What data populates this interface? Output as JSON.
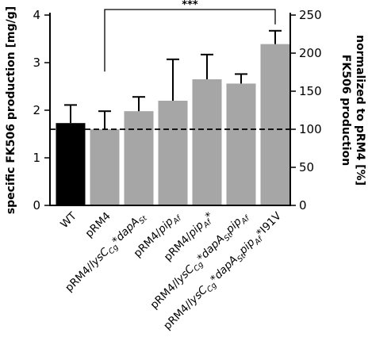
{
  "chart_data": {
    "type": "bar",
    "title": "",
    "categories": [
      "WT",
      "pRM4",
      "pRM4/lysC_Cg*dapA_St",
      "pRM4/pip_Af",
      "pRM4/pip_Af*",
      "pRM4/lysC_Cg*dapA_St pip_Af",
      "pRM4/lysC_Cg*dapA_St pip_Af*I91V"
    ],
    "category_labels": [
      [
        {
          "t": "WT",
          "s": ""
        }
      ],
      [
        {
          "t": "pRM4",
          "s": ""
        }
      ],
      [
        {
          "t": "pRM4/",
          "s": ""
        },
        {
          "t": "lysC",
          "s": "i"
        },
        {
          "t": "Cg",
          "s": "sub"
        },
        {
          "t": "*",
          "s": ""
        },
        {
          "t": "dapA",
          "s": "i"
        },
        {
          "t": "St",
          "s": "sub"
        }
      ],
      [
        {
          "t": "pRM4/",
          "s": ""
        },
        {
          "t": "pip",
          "s": "i"
        },
        {
          "t": "Af",
          "s": "sub"
        }
      ],
      [
        {
          "t": "pRM4/",
          "s": ""
        },
        {
          "t": "pip",
          "s": "i"
        },
        {
          "t": "Af",
          "s": "sub"
        },
        {
          "t": "*",
          "s": ""
        }
      ],
      [
        {
          "t": "pRM4/",
          "s": ""
        },
        {
          "t": "lysC",
          "s": "i"
        },
        {
          "t": "Cg",
          "s": "sub"
        },
        {
          "t": "*",
          "s": ""
        },
        {
          "t": "dapA",
          "s": "i"
        },
        {
          "t": "St",
          "s": "sub"
        },
        {
          "t": "pip",
          "s": "i"
        },
        {
          "t": "Af",
          "s": "sub"
        }
      ],
      [
        {
          "t": "pRM4/",
          "s": ""
        },
        {
          "t": "lysC",
          "s": "i"
        },
        {
          "t": "Cg",
          "s": "sub"
        },
        {
          "t": "*",
          "s": ""
        },
        {
          "t": "dapA",
          "s": "i"
        },
        {
          "t": "St",
          "s": "sub"
        },
        {
          "t": "pip",
          "s": "i"
        },
        {
          "t": "Af",
          "s": "sub"
        },
        {
          "t": "*I91V",
          "s": ""
        }
      ]
    ],
    "values": [
      1.73,
      1.6,
      1.98,
      2.2,
      2.65,
      2.56,
      3.39
    ],
    "errors": [
      0.38,
      0.38,
      0.3,
      0.87,
      0.52,
      0.2,
      0.28
    ],
    "colors": [
      "#000000",
      "#a6a6a6",
      "#a6a6a6",
      "#a6a6a6",
      "#a6a6a6",
      "#a6a6a6",
      "#a6a6a6"
    ],
    "ylabel": "specific FK506 production [mg/g]",
    "ylim": [
      0,
      4
    ],
    "yticks": [
      0,
      1,
      2,
      3,
      4
    ],
    "y2label_lines": [
      "FK506 production",
      "normalized to pRM4 [%]"
    ],
    "y2lim": [
      0,
      250
    ],
    "y2ticks": [
      0,
      50,
      100,
      150,
      200,
      250
    ],
    "reference_line": {
      "y": 1.6,
      "style": "dashed"
    },
    "significance": {
      "from": 1,
      "to": 6,
      "label": "***"
    },
    "grid": false,
    "legend": "none"
  }
}
